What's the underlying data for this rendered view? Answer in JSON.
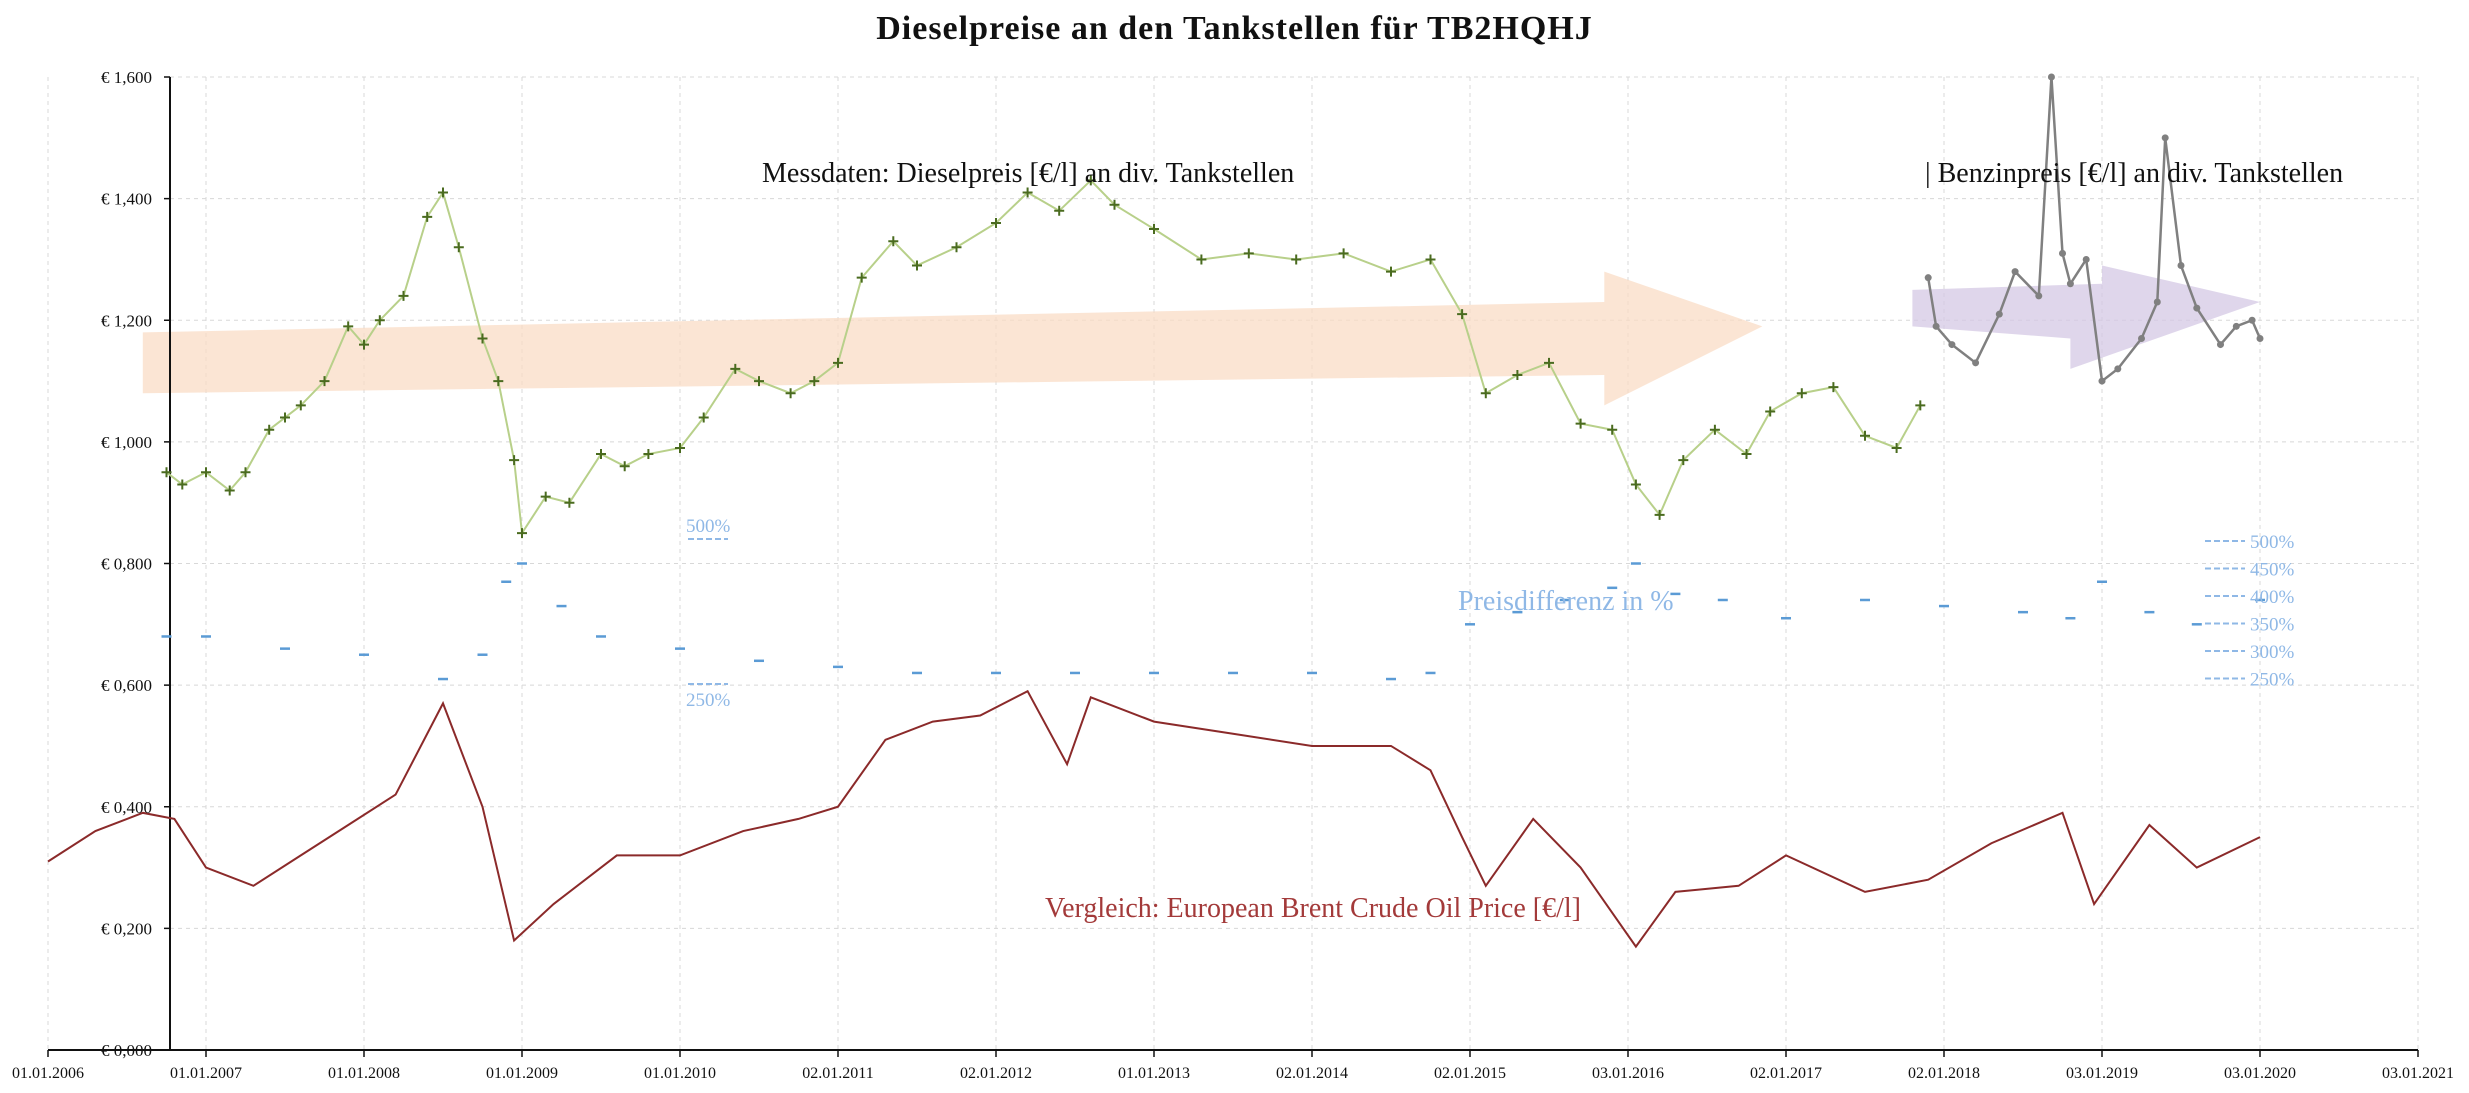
{
  "chart_data": {
    "type": "line",
    "title": "Dieselpreise an den Tankstellen für TB2HQHJ",
    "y_ticks": [
      "€ 0,000",
      "€ 0,200",
      "€ 0,400",
      "€ 0,600",
      "€ 0,800",
      "€ 1,000",
      "€ 1,200",
      "€ 1,400",
      "€ 1,600"
    ],
    "ylim": [
      0,
      1.6
    ],
    "x_ticks": [
      "01.01.2006",
      "01.01.2007",
      "01.01.2008",
      "01.01.2009",
      "01.01.2010",
      "02.01.2011",
      "02.01.2012",
      "01.01.2013",
      "02.01.2014",
      "02.01.2015",
      "03.01.2016",
      "02.01.2017",
      "02.01.2018",
      "03.01.2019",
      "03.01.2020",
      "03.01.2021"
    ],
    "xlim": [
      2006.0,
      2021.0
    ],
    "grid": true,
    "annotations": {
      "diesel_label": "Messdaten:  Dieselpreis [€/l] an div. Tankstellen",
      "benzin_label": "| Benzinpreis [€/l] an div. Tankstellen",
      "diff_label": "Preisdifferenz in %",
      "brent_label": "Vergleich: European Brent Crude Oil Price [€/l]",
      "pct_500_left": "500%",
      "pct_250_left": "250%",
      "pct_right": [
        "500%",
        "450%",
        "400%",
        "350%",
        "300%",
        "250%"
      ]
    },
    "colors": {
      "diesel": "#4a6b1f",
      "diesel_line": "#b8d08a",
      "benzin": "#808080",
      "diff": "#5b9bd5",
      "brent": "#8b2a2a",
      "trend_diesel": "#f9dcc6",
      "trend_benzin": "#d4c8e4"
    },
    "series": [
      {
        "name": "Dieselpreis",
        "x": [
          2006.75,
          2006.85,
          2007.0,
          2007.15,
          2007.25,
          2007.4,
          2007.5,
          2007.6,
          2007.75,
          2007.9,
          2008.0,
          2008.1,
          2008.25,
          2008.4,
          2008.5,
          2008.6,
          2008.75,
          2008.85,
          2008.95,
          2009.0,
          2009.15,
          2009.3,
          2009.5,
          2009.65,
          2009.8,
          2010.0,
          2010.15,
          2010.35,
          2010.5,
          2010.7,
          2010.85,
          2011.0,
          2011.15,
          2011.35,
          2011.5,
          2011.75,
          2012.0,
          2012.2,
          2012.4,
          2012.6,
          2012.75,
          2013.0,
          2013.3,
          2013.6,
          2013.9,
          2014.2,
          2014.5,
          2014.75,
          2014.95,
          2015.1,
          2015.3,
          2015.5,
          2015.7,
          2015.9,
          2016.05,
          2016.2,
          2016.35,
          2016.55,
          2016.75,
          2016.9,
          2017.1,
          2017.3,
          2017.5,
          2017.7,
          2017.85
        ],
        "values": [
          0.95,
          0.93,
          0.95,
          0.92,
          0.95,
          1.02,
          1.04,
          1.06,
          1.1,
          1.19,
          1.16,
          1.2,
          1.24,
          1.37,
          1.41,
          1.32,
          1.17,
          1.1,
          0.97,
          0.85,
          0.91,
          0.9,
          0.98,
          0.96,
          0.98,
          0.99,
          1.04,
          1.12,
          1.1,
          1.08,
          1.1,
          1.13,
          1.27,
          1.33,
          1.29,
          1.32,
          1.36,
          1.41,
          1.38,
          1.43,
          1.39,
          1.35,
          1.3,
          1.31,
          1.3,
          1.31,
          1.28,
          1.3,
          1.21,
          1.08,
          1.11,
          1.13,
          1.03,
          1.02,
          0.93,
          0.88,
          0.97,
          1.02,
          0.98,
          1.05,
          1.08,
          1.09,
          1.01,
          0.99,
          1.06
        ]
      },
      {
        "name": "Benzinpreis",
        "x": [
          2017.9,
          2017.95,
          2018.05,
          2018.2,
          2018.35,
          2018.45,
          2018.6,
          2018.68,
          2018.75,
          2018.8,
          2018.9,
          2019.0,
          2019.1,
          2019.25,
          2019.35,
          2019.4,
          2019.5,
          2019.6,
          2019.75,
          2019.85,
          2019.95,
          2020.0
        ],
        "values": [
          1.27,
          1.19,
          1.16,
          1.13,
          1.21,
          1.28,
          1.24,
          1.6,
          1.31,
          1.26,
          1.3,
          1.1,
          1.12,
          1.17,
          1.23,
          1.5,
          1.29,
          1.22,
          1.16,
          1.19,
          1.2,
          1.17
        ]
      },
      {
        "name": "Preisdifferenz in %",
        "x": [
          2006.75,
          2007.0,
          2007.5,
          2008.0,
          2008.5,
          2008.75,
          2008.9,
          2009.0,
          2009.25,
          2009.5,
          2010.0,
          2010.5,
          2011.0,
          2011.5,
          2012.0,
          2012.5,
          2013.0,
          2013.5,
          2014.0,
          2014.5,
          2014.75,
          2015.0,
          2015.3,
          2015.6,
          2015.9,
          2016.05,
          2016.3,
          2016.6,
          2017.0,
          2017.5,
          2018.0,
          2018.5,
          2018.8,
          2019.0,
          2019.3,
          2019.6,
          2020.0
        ],
        "values": [
          0.68,
          0.68,
          0.66,
          0.65,
          0.61,
          0.65,
          0.77,
          0.8,
          0.73,
          0.68,
          0.66,
          0.64,
          0.63,
          0.62,
          0.62,
          0.62,
          0.62,
          0.62,
          0.62,
          0.61,
          0.62,
          0.7,
          0.72,
          0.74,
          0.76,
          0.8,
          0.75,
          0.74,
          0.71,
          0.74,
          0.73,
          0.72,
          0.71,
          0.77,
          0.72,
          0.7,
          0.74
        ]
      },
      {
        "name": "European Brent Crude Oil Price",
        "x": [
          2006.0,
          2006.3,
          2006.6,
          2006.8,
          2007.0,
          2007.3,
          2007.6,
          2007.9,
          2008.2,
          2008.5,
          2008.75,
          2008.95,
          2009.2,
          2009.6,
          2010.0,
          2010.4,
          2010.75,
          2011.0,
          2011.3,
          2011.6,
          2011.9,
          2012.2,
          2012.45,
          2012.6,
          2013.0,
          2013.5,
          2014.0,
          2014.5,
          2014.75,
          2014.95,
          2015.1,
          2015.4,
          2015.7,
          2016.05,
          2016.3,
          2016.7,
          2017.0,
          2017.5,
          2017.9,
          2018.3,
          2018.75,
          2018.95,
          2019.3,
          2019.6,
          2020.0
        ],
        "values": [
          0.31,
          0.36,
          0.39,
          0.38,
          0.3,
          0.27,
          0.32,
          0.37,
          0.42,
          0.57,
          0.4,
          0.18,
          0.24,
          0.32,
          0.32,
          0.36,
          0.38,
          0.4,
          0.51,
          0.54,
          0.55,
          0.59,
          0.47,
          0.58,
          0.54,
          0.52,
          0.5,
          0.5,
          0.46,
          0.35,
          0.27,
          0.38,
          0.3,
          0.17,
          0.26,
          0.27,
          0.32,
          0.26,
          0.28,
          0.34,
          0.39,
          0.24,
          0.37,
          0.3,
          0.35
        ]
      }
    ]
  }
}
